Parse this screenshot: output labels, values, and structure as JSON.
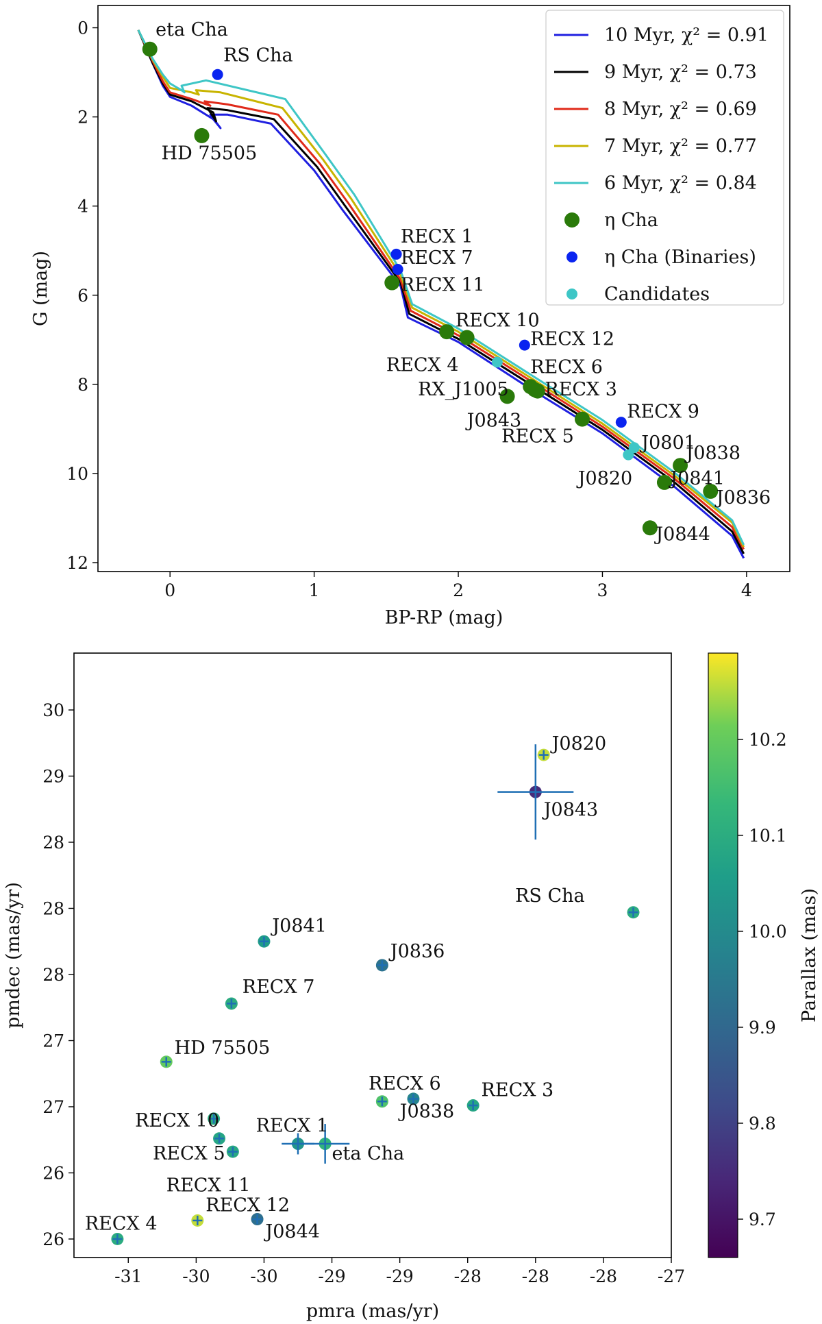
{
  "chart_data": [
    {
      "type": "line+scatter",
      "title": "",
      "xlabel": "BP-RP (mag)",
      "ylabel": "G (mag)",
      "xlim": [
        -0.5,
        4.3
      ],
      "ylim": [
        12.2,
        -0.5
      ],
      "xticks": [
        0,
        1,
        2,
        3,
        4
      ],
      "xtick_labels": [
        "0",
        "1",
        "2",
        "3",
        "4"
      ],
      "yticks": [
        0,
        2,
        4,
        6,
        8,
        10,
        12
      ],
      "ytick_labels": [
        "0",
        "2",
        "4",
        "6",
        "8",
        "10",
        "12"
      ],
      "legend_position": "top-right",
      "legend": [
        {
          "label": "10 Myr, χ² = 0.91",
          "kind": "line",
          "color": "#1f1fe0"
        },
        {
          "label": "9 Myr, χ² = 0.73",
          "kind": "line",
          "color": "#000000"
        },
        {
          "label": "8 Myr, χ² = 0.69",
          "kind": "line",
          "color": "#e02a1a"
        },
        {
          "label": "7 Myr, χ² = 0.77",
          "kind": "line",
          "color": "#c8b400"
        },
        {
          "label": "6 Myr, χ² = 0.84",
          "kind": "line",
          "color": "#3ec6c6"
        },
        {
          "label": "η Cha",
          "kind": "marker",
          "color": "#2a7a0a"
        },
        {
          "label": "η Cha (Binaries)",
          "kind": "marker-small",
          "color": "#0a24f0"
        },
        {
          "label": "Candidates",
          "kind": "marker-small",
          "color": "#3ec6c6"
        }
      ],
      "isochrones": [
        {
          "name": "10 Myr",
          "color": "#1f1fe0",
          "points": [
            [
              -0.22,
              0.05
            ],
            [
              -0.12,
              0.8
            ],
            [
              -0.05,
              1.3
            ],
            [
              0.0,
              1.55
            ],
            [
              0.15,
              1.75
            ],
            [
              0.3,
              2.05
            ],
            [
              0.35,
              2.25
            ],
            [
              0.28,
              1.95
            ],
            [
              0.4,
              1.95
            ],
            [
              0.7,
              2.15
            ],
            [
              1.0,
              3.2
            ],
            [
              1.2,
              4.1
            ],
            [
              1.6,
              5.8
            ],
            [
              1.65,
              6.5
            ],
            [
              2.0,
              7.05
            ],
            [
              2.5,
              8.1
            ],
            [
              3.0,
              9.1
            ],
            [
              3.5,
              10.3
            ],
            [
              3.9,
              11.4
            ],
            [
              3.98,
              11.9
            ]
          ]
        },
        {
          "name": "9 Myr",
          "color": "#000000",
          "points": [
            [
              -0.22,
              0.05
            ],
            [
              -0.12,
              0.8
            ],
            [
              -0.05,
              1.25
            ],
            [
              0.0,
              1.5
            ],
            [
              0.15,
              1.65
            ],
            [
              0.3,
              1.9
            ],
            [
              0.32,
              2.1
            ],
            [
              0.26,
              1.8
            ],
            [
              0.4,
              1.85
            ],
            [
              0.72,
              2.05
            ],
            [
              1.02,
              3.12
            ],
            [
              1.22,
              4.02
            ],
            [
              1.6,
              5.72
            ],
            [
              1.66,
              6.42
            ],
            [
              2.0,
              6.98
            ],
            [
              2.5,
              8.0
            ],
            [
              3.0,
              9.02
            ],
            [
              3.5,
              10.2
            ],
            [
              3.9,
              11.3
            ],
            [
              3.98,
              11.8
            ]
          ]
        },
        {
          "name": "8 Myr",
          "color": "#e02a1a",
          "points": [
            [
              -0.22,
              0.05
            ],
            [
              -0.12,
              0.75
            ],
            [
              -0.05,
              1.2
            ],
            [
              0.0,
              1.45
            ],
            [
              0.15,
              1.6
            ],
            [
              0.28,
              1.75
            ],
            [
              0.24,
              1.65
            ],
            [
              0.4,
              1.72
            ],
            [
              0.75,
              1.95
            ],
            [
              1.04,
              3.05
            ],
            [
              1.24,
              3.95
            ],
            [
              1.6,
              5.65
            ],
            [
              1.67,
              6.35
            ],
            [
              2.0,
              6.9
            ],
            [
              2.5,
              7.92
            ],
            [
              3.0,
              8.95
            ],
            [
              3.5,
              10.12
            ],
            [
              3.9,
              11.2
            ],
            [
              3.98,
              11.7
            ]
          ]
        },
        {
          "name": "7 Myr",
          "color": "#c8b400",
          "points": [
            [
              -0.22,
              0.05
            ],
            [
              -0.12,
              0.72
            ],
            [
              -0.05,
              1.1
            ],
            [
              0.0,
              1.35
            ],
            [
              0.15,
              1.45
            ],
            [
              0.2,
              1.5
            ],
            [
              0.18,
              1.4
            ],
            [
              0.35,
              1.45
            ],
            [
              0.78,
              1.8
            ],
            [
              1.06,
              2.95
            ],
            [
              1.26,
              3.85
            ],
            [
              1.6,
              5.55
            ],
            [
              1.68,
              6.28
            ],
            [
              2.0,
              6.82
            ],
            [
              2.5,
              7.85
            ],
            [
              3.0,
              8.88
            ],
            [
              3.5,
              10.05
            ],
            [
              3.9,
              11.1
            ],
            [
              3.98,
              11.65
            ]
          ]
        },
        {
          "name": "6 Myr",
          "color": "#3ec6c6",
          "points": [
            [
              -0.22,
              0.05
            ],
            [
              -0.12,
              0.7
            ],
            [
              -0.05,
              1.05
            ],
            [
              0.0,
              1.25
            ],
            [
              0.08,
              1.4
            ],
            [
              0.1,
              1.45
            ],
            [
              0.08,
              1.3
            ],
            [
              0.25,
              1.18
            ],
            [
              0.8,
              1.6
            ],
            [
              1.08,
              2.85
            ],
            [
              1.28,
              3.75
            ],
            [
              1.6,
              5.45
            ],
            [
              1.68,
              6.2
            ],
            [
              2.0,
              6.75
            ],
            [
              2.5,
              7.78
            ],
            [
              3.0,
              8.8
            ],
            [
              3.5,
              9.98
            ],
            [
              3.9,
              11.05
            ],
            [
              3.98,
              11.6
            ]
          ]
        }
      ],
      "scatter": [
        {
          "name": "eta Cha",
          "group": "eta_cha",
          "x": -0.14,
          "y": 0.48
        },
        {
          "name": "HD  75505",
          "group": "eta_cha",
          "x": 0.22,
          "y": 2.42
        },
        {
          "name": "RECX 11",
          "group": "eta_cha",
          "x": 1.54,
          "y": 5.72
        },
        {
          "name": "RECX 4",
          "group": "eta_cha",
          "x": 1.92,
          "y": 6.82
        },
        {
          "name": "RECX 10",
          "group": "eta_cha",
          "x": 2.06,
          "y": 6.95
        },
        {
          "name": "RX_J1005",
          "group": "eta_cha",
          "x": 2.5,
          "y": 8.05
        },
        {
          "name": "RECX 6",
          "group": "eta_cha",
          "x": 2.53,
          "y": 8.12
        },
        {
          "name": "RECX 3",
          "group": "eta_cha",
          "x": 2.55,
          "y": 8.15
        },
        {
          "name": "J0843",
          "group": "eta_cha",
          "x": 2.34,
          "y": 8.27
        },
        {
          "name": "RECX 5",
          "group": "eta_cha",
          "x": 2.86,
          "y": 8.78
        },
        {
          "name": "J0838",
          "group": "eta_cha",
          "x": 3.54,
          "y": 9.82
        },
        {
          "name": "J0841",
          "group": "eta_cha",
          "x": 3.43,
          "y": 10.2
        },
        {
          "name": "J0836",
          "group": "eta_cha",
          "x": 3.75,
          "y": 10.4
        },
        {
          "name": "J0844",
          "group": "eta_cha",
          "x": 3.33,
          "y": 11.22
        },
        {
          "name": "RS Cha",
          "group": "binaries",
          "x": 0.33,
          "y": 1.05
        },
        {
          "name": "RECX 1",
          "group": "binaries",
          "x": 1.57,
          "y": 5.08
        },
        {
          "name": "RECX 7",
          "group": "binaries",
          "x": 1.58,
          "y": 5.42
        },
        {
          "name": "RECX 12",
          "group": "binaries",
          "x": 2.46,
          "y": 7.12
        },
        {
          "name": "RECX 9",
          "group": "binaries",
          "x": 3.13,
          "y": 8.85
        },
        {
          "name": "RECX 10 candidate",
          "group": "candidates",
          "x": 2.27,
          "y": 7.5
        },
        {
          "name": "J0801",
          "group": "candidates",
          "x": 3.22,
          "y": 9.42
        },
        {
          "name": "J0820",
          "group": "candidates",
          "x": 3.18,
          "y": 9.58
        }
      ],
      "annotations": [
        {
          "text": "eta Cha",
          "x": -0.1,
          "y": 0.18
        },
        {
          "text": "RS Cha",
          "x": 0.37,
          "y": 0.75
        },
        {
          "text": "HD  75505",
          "x": -0.06,
          "y": 2.95
        },
        {
          "text": "RECX 1",
          "x": 1.6,
          "y": 4.82
        },
        {
          "text": "RECX 7",
          "x": 1.6,
          "y": 5.3
        },
        {
          "text": "RECX 11",
          "x": 1.6,
          "y": 5.9
        },
        {
          "text": "RECX 10",
          "x": 1.98,
          "y": 6.7
        },
        {
          "text": "RECX 12",
          "x": 2.5,
          "y": 7.12
        },
        {
          "text": "RECX 4",
          "x": 1.5,
          "y": 7.7
        },
        {
          "text": "RECX 6",
          "x": 2.5,
          "y": 7.75
        },
        {
          "text": "RX_J1005",
          "x": 1.72,
          "y": 8.25
        },
        {
          "text": "RECX 3",
          "x": 2.6,
          "y": 8.25
        },
        {
          "text": "J0843",
          "x": 2.06,
          "y": 8.95
        },
        {
          "text": "RECX 9",
          "x": 3.17,
          "y": 8.75
        },
        {
          "text": "RECX 5",
          "x": 2.3,
          "y": 9.3
        },
        {
          "text": "J0801",
          "x": 3.27,
          "y": 9.45
        },
        {
          "text": "J0838",
          "x": 3.58,
          "y": 9.68
        },
        {
          "text": "J0820",
          "x": 2.83,
          "y": 10.25
        },
        {
          "text": "J0841",
          "x": 3.47,
          "y": 10.25
        },
        {
          "text": "J0836",
          "x": 3.79,
          "y": 10.68
        },
        {
          "text": "J0844",
          "x": 3.37,
          "y": 11.5
        }
      ]
    },
    {
      "type": "scatter",
      "title": "",
      "xlabel": "pmra (mas/yr)",
      "ylabel": "pmdec (mas/yr)",
      "xlim": [
        -31.4,
        -27.0
      ],
      "ylim": [
        25.66,
        30.23
      ],
      "xticks": [
        -31.0,
        -30.5,
        -30.0,
        -29.5,
        -29.0,
        -28.5,
        -28.0,
        -27.5,
        -27.0
      ],
      "xtick_labels": [
        "-31",
        "-30",
        "-30",
        "-29",
        "-29",
        "-28",
        "-28",
        "-28",
        "-27"
      ],
      "yticks": [
        25.8,
        26.3,
        26.8,
        27.3,
        27.8,
        28.3,
        28.8,
        29.3,
        29.8
      ],
      "ytick_labels": [
        "26",
        "26",
        "27",
        "27",
        "28",
        "28",
        "28",
        "29",
        "30"
      ],
      "colorbar": {
        "label": "Parallax (mas)",
        "min": 9.66,
        "max": 10.29,
        "ticks": [
          9.7,
          9.8,
          9.9,
          10.0,
          10.1,
          10.2
        ],
        "tick_labels": [
          "9.7",
          "9.8",
          "9.9",
          "10.0",
          "10.1",
          "10.2"
        ],
        "colormap": "viridis"
      },
      "points": [
        {
          "name": "J0820",
          "x": -27.94,
          "y": 29.46,
          "parallax": 10.26,
          "xerr": 0.0,
          "yerr": 0.0
        },
        {
          "name": "J0843",
          "x": -28.0,
          "y": 29.18,
          "parallax": 9.75,
          "xerr": 0.28,
          "yerr": 0.36
        },
        {
          "name": "RS Cha",
          "x": -27.28,
          "y": 28.27,
          "parallax": 10.1,
          "xerr": 0.0,
          "yerr": 0.0
        },
        {
          "name": "J0841",
          "x": -30.0,
          "y": 28.05,
          "parallax": 10.05,
          "xerr": 0.0,
          "yerr": 0.0
        },
        {
          "name": "J0836",
          "x": -29.13,
          "y": 27.87,
          "parallax": 9.93,
          "xerr": 0.0,
          "yerr": 0.0
        },
        {
          "name": "RECX 7",
          "x": -30.24,
          "y": 27.58,
          "parallax": 10.1,
          "xerr": 0.0,
          "yerr": 0.0
        },
        {
          "name": "HD  75505",
          "x": -30.72,
          "y": 27.14,
          "parallax": 10.2,
          "xerr": 0.0,
          "yerr": 0.0
        },
        {
          "name": "RECX 6",
          "x": -29.13,
          "y": 26.84,
          "parallax": 10.17,
          "xerr": 0.0,
          "yerr": 0.0
        },
        {
          "name": "J0838",
          "x": -28.9,
          "y": 26.86,
          "parallax": 9.98,
          "xerr": 0.0,
          "yerr": 0.0
        },
        {
          "name": "RECX 3",
          "x": -28.46,
          "y": 26.81,
          "parallax": 10.08,
          "xerr": 0.0,
          "yerr": 0.0
        },
        {
          "name": "RECX 10",
          "x": -30.37,
          "y": 26.71,
          "parallax": 10.1,
          "xerr": 0.0,
          "yerr": 0.0
        },
        {
          "name": "RECX 5",
          "x": -30.33,
          "y": 26.56,
          "parallax": 10.08,
          "xerr": 0.0,
          "yerr": 0.0
        },
        {
          "name": "RECX 11",
          "x": -30.23,
          "y": 26.46,
          "parallax": 10.09,
          "xerr": 0.0,
          "yerr": 0.0
        },
        {
          "name": "RECX 1",
          "x": -29.75,
          "y": 26.52,
          "parallax": 10.03,
          "xerr": 0.12,
          "yerr": 0.08
        },
        {
          "name": "eta Cha",
          "x": -29.55,
          "y": 26.52,
          "parallax": 10.12,
          "xerr": 0.18,
          "yerr": 0.15
        },
        {
          "name": "RECX 12",
          "x": -30.49,
          "y": 25.94,
          "parallax": 10.26,
          "xerr": 0.0,
          "yerr": 0.0
        },
        {
          "name": "J0844",
          "x": -30.05,
          "y": 25.95,
          "parallax": 9.92,
          "xerr": 0.0,
          "yerr": 0.0
        },
        {
          "name": "RECX 4",
          "x": -31.08,
          "y": 25.8,
          "parallax": 10.1,
          "xerr": 0.0,
          "yerr": 0.0
        }
      ],
      "annotations": [
        {
          "text": "J0820",
          "x": -27.88,
          "y": 29.5
        },
        {
          "text": "J0843",
          "x": -27.94,
          "y": 29.0
        },
        {
          "text": "RS Cha",
          "x": -28.15,
          "y": 28.35
        },
        {
          "text": "J0841",
          "x": -29.94,
          "y": 28.12
        },
        {
          "text": "J0836",
          "x": -29.07,
          "y": 27.93
        },
        {
          "text": "RECX 7",
          "x": -30.16,
          "y": 27.66
        },
        {
          "text": "HD  75505",
          "x": -30.66,
          "y": 27.2
        },
        {
          "text": "RECX 6",
          "x": -29.23,
          "y": 26.93
        },
        {
          "text": "RECX 3",
          "x": -28.4,
          "y": 26.88
        },
        {
          "text": "J0838",
          "x": -29.0,
          "y": 26.72
        },
        {
          "text": "RECX 1",
          "x": -30.06,
          "y": 26.61
        },
        {
          "text": "RECX 10",
          "x": -30.95,
          "y": 26.65
        },
        {
          "text": "eta Cha",
          "x": -29.5,
          "y": 26.4
        },
        {
          "text": "RECX 5",
          "x": -30.82,
          "y": 26.4
        },
        {
          "text": "RECX 11",
          "x": -30.72,
          "y": 26.16
        },
        {
          "text": "RECX 12",
          "x": -30.43,
          "y": 26.01
        },
        {
          "text": "J0844",
          "x": -29.99,
          "y": 25.81
        },
        {
          "text": "RECX 4",
          "x": -31.32,
          "y": 25.87
        }
      ]
    }
  ]
}
